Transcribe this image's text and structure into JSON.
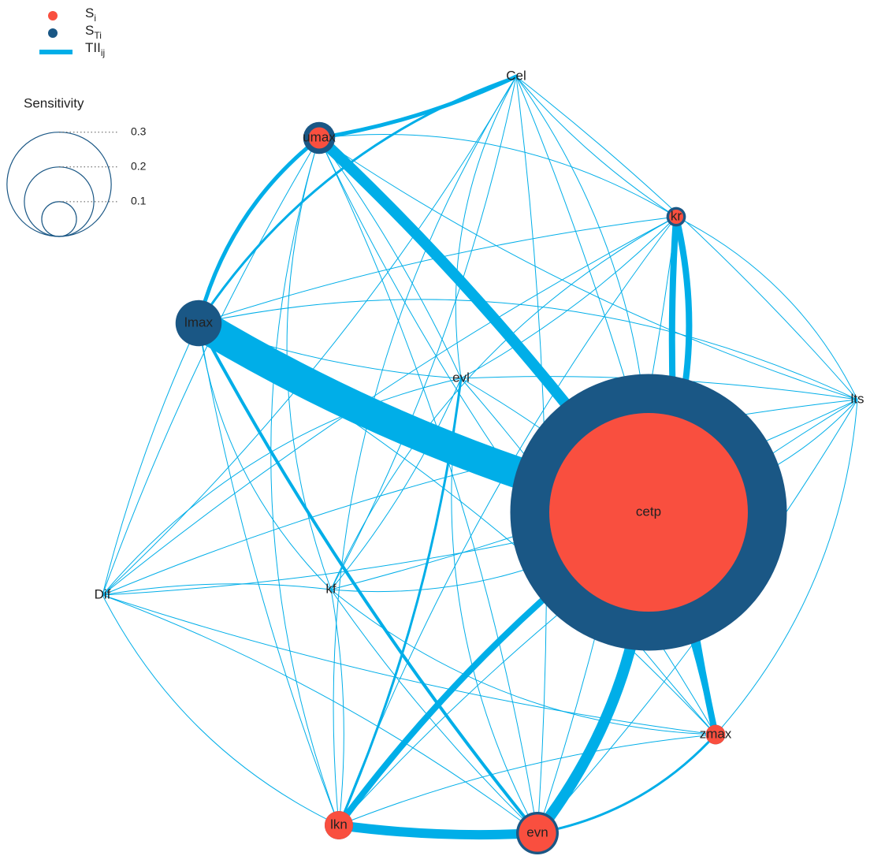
{
  "legend": {
    "items": [
      {
        "main": "S",
        "sub": "i",
        "color": "#f94f3f"
      },
      {
        "main": "S",
        "sub": "Ti",
        "color": "#1a5785"
      },
      {
        "main": "TII",
        "sub": "ij",
        "color": "#00aee8"
      }
    ],
    "sensitivity": {
      "title": "Sensitivity",
      "ticks": [
        0.3,
        0.2,
        0.1
      ]
    }
  },
  "nodes": [
    {
      "label": "Cel",
      "si": 0,
      "sti": 0
    },
    {
      "label": "umax",
      "si": 0.06,
      "sti": 0.09
    },
    {
      "label": "kr",
      "si": 0.04,
      "sti": 0.055
    },
    {
      "label": "lmax",
      "si": 0,
      "sti": 0.13
    },
    {
      "label": "evl",
      "si": 0,
      "sti": 0
    },
    {
      "label": "lts",
      "si": 0,
      "sti": 0
    },
    {
      "label": "cetp",
      "si": 0.56,
      "sti": 0.78
    },
    {
      "label": "Dif",
      "si": 0,
      "sti": 0
    },
    {
      "label": "kf",
      "si": 0,
      "sti": 0
    },
    {
      "label": "zmax",
      "si": 0.055,
      "sti": 0.055
    },
    {
      "label": "lkn",
      "si": 0.08,
      "sti": 0.08
    },
    {
      "label": "evn",
      "si": 0.105,
      "sti": 0.12
    }
  ],
  "edges": [
    [
      "lmax",
      "cetp",
      0.2
    ],
    [
      "umax",
      "cetp",
      0.07
    ],
    [
      "kr",
      "cetp",
      0.04
    ],
    [
      "kr",
      "zmax",
      0.04
    ],
    [
      "lkn",
      "evn",
      0.06
    ],
    [
      "evn",
      "cetp",
      0.07
    ],
    [
      "lkn",
      "cetp",
      0.04
    ],
    [
      "zmax",
      "cetp",
      0.035
    ],
    [
      "umax",
      "lmax",
      0.025
    ],
    [
      "umax",
      "Cel",
      0.025
    ],
    [
      "lmax",
      "evn",
      0.02
    ],
    [
      "lmax",
      "Cel",
      0.015
    ],
    [
      "evl",
      "lkn",
      0.015
    ],
    [
      "lmax",
      "lkn",
      0.005
    ],
    [
      "evn",
      "zmax",
      0.015
    ],
    [
      "Cel",
      "kr",
      0.005
    ],
    [
      "Cel",
      "lts",
      0.005
    ],
    [
      "Cel",
      "evl",
      0.005
    ],
    [
      "Cel",
      "kf",
      0.005
    ],
    [
      "Cel",
      "zmax",
      0.005
    ],
    [
      "Cel",
      "lkn",
      0.005
    ],
    [
      "Cel",
      "Dif",
      0.005
    ],
    [
      "Cel",
      "evn",
      0.005
    ],
    [
      "umax",
      "kr",
      0.005
    ],
    [
      "umax",
      "lts",
      0.005
    ],
    [
      "umax",
      "evl",
      0.005
    ],
    [
      "umax",
      "kf",
      0.005
    ],
    [
      "umax",
      "zmax",
      0.005
    ],
    [
      "umax",
      "Dif",
      0.005
    ],
    [
      "umax",
      "lkn",
      0.005
    ],
    [
      "umax",
      "evn",
      0.005
    ],
    [
      "kr",
      "lmax",
      0.005
    ],
    [
      "kr",
      "lts",
      0.005
    ],
    [
      "kr",
      "evl",
      0.005
    ],
    [
      "kr",
      "Dif",
      0.005
    ],
    [
      "kr",
      "kf",
      0.005
    ],
    [
      "kr",
      "lkn",
      0.005
    ],
    [
      "kr",
      "evn",
      0.005
    ],
    [
      "lmax",
      "lts",
      0.005
    ],
    [
      "lmax",
      "evl",
      0.005
    ],
    [
      "lmax",
      "Dif",
      0.005
    ],
    [
      "lmax",
      "kf",
      0.005
    ],
    [
      "lmax",
      "zmax",
      0.005
    ],
    [
      "evl",
      "lts",
      0.005
    ],
    [
      "evl",
      "Dif",
      0.005
    ],
    [
      "evl",
      "kf",
      0.005
    ],
    [
      "evl",
      "zmax",
      0.005
    ],
    [
      "evl",
      "evn",
      0.005
    ],
    [
      "lts",
      "Dif",
      0.005
    ],
    [
      "lts",
      "kf",
      0.005
    ],
    [
      "lts",
      "zmax",
      0.005
    ],
    [
      "lts",
      "lkn",
      0.005
    ],
    [
      "lts",
      "evn",
      0.005
    ],
    [
      "lts",
      "cetp",
      0.005
    ],
    [
      "Dif",
      "kf",
      0.005
    ],
    [
      "Dif",
      "zmax",
      0.005
    ],
    [
      "Dif",
      "lkn",
      0.005
    ],
    [
      "Dif",
      "evn",
      0.005
    ],
    [
      "Dif",
      "cetp",
      0.005
    ],
    [
      "kf",
      "zmax",
      0.005
    ],
    [
      "kf",
      "lkn",
      0.005
    ],
    [
      "kf",
      "evn",
      0.005
    ],
    [
      "kf",
      "cetp",
      0.005
    ],
    [
      "zmax",
      "lkn",
      0.005
    ],
    [
      "evl",
      "cetp",
      0.005
    ],
    [
      "Cel",
      "cetp",
      0.005
    ]
  ]
}
